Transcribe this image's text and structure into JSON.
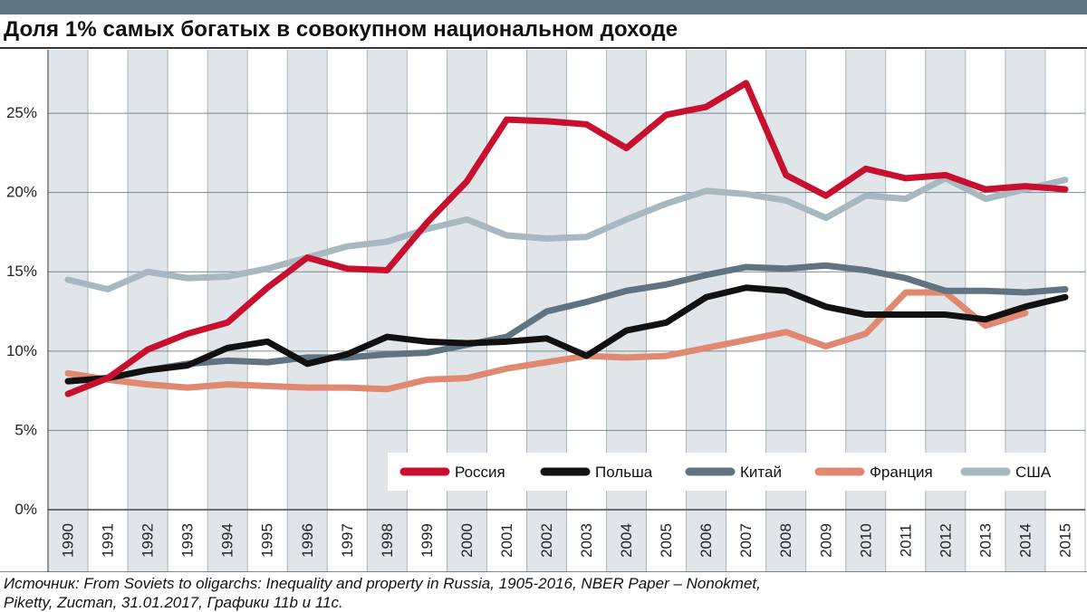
{
  "title": "Доля 1% самых богатых в совокупном национальном доходе",
  "source_line1": "Источник: From Soviets to oligarchs: Inequality and property in Russia, 1905-2016, NBER Paper – Nonokmet,",
  "source_line2": "Piketty, Zucman, 31.01.2017, Графики 11b и 11c.",
  "chart_data": {
    "type": "line",
    "title": "Доля 1% самых богатых в совокупном национальном доходе",
    "xlabel": "",
    "ylabel": "",
    "ylim": [
      0,
      29
    ],
    "yticks": [
      0,
      5,
      10,
      15,
      20,
      25
    ],
    "ytick_labels": [
      "0%",
      "5%",
      "10%",
      "15%",
      "20%",
      "25%"
    ],
    "categories": [
      "1990",
      "1991",
      "1992",
      "1993",
      "1994",
      "1995",
      "1996",
      "1997",
      "1998",
      "1999",
      "2000",
      "2001",
      "2002",
      "2003",
      "2004",
      "2005",
      "2006",
      "2007",
      "2008",
      "2009",
      "2010",
      "2011",
      "2012",
      "2013",
      "2014",
      "2015"
    ],
    "legend_position": "bottom-right",
    "series": [
      {
        "name": "Россия",
        "color": "#c8102e",
        "values": [
          7.3,
          8.3,
          10.1,
          11.1,
          11.8,
          14.0,
          15.9,
          15.2,
          15.1,
          18.1,
          20.7,
          24.6,
          24.5,
          24.3,
          22.8,
          24.9,
          25.4,
          26.9,
          21.1,
          19.8,
          21.5,
          20.9,
          21.1,
          20.2,
          20.4,
          20.2
        ]
      },
      {
        "name": "Польша",
        "color": "#111111",
        "values": [
          8.1,
          8.3,
          8.8,
          9.1,
          10.2,
          10.6,
          9.2,
          9.8,
          10.9,
          10.6,
          10.5,
          10.6,
          10.8,
          9.7,
          11.3,
          11.8,
          13.4,
          14.0,
          13.8,
          12.8,
          12.3,
          12.3,
          12.3,
          12.0,
          12.8,
          13.4
        ]
      },
      {
        "name": "Китай",
        "color": "#5f7480",
        "values": [
          8.1,
          8.3,
          8.8,
          9.2,
          9.4,
          9.3,
          9.6,
          9.6,
          9.8,
          9.9,
          10.4,
          10.9,
          12.5,
          13.1,
          13.8,
          14.2,
          14.8,
          15.3,
          15.2,
          15.4,
          15.1,
          14.6,
          13.8,
          13.8,
          13.7,
          13.9
        ]
      },
      {
        "name": "Франция",
        "color": "#e08870",
        "values": [
          8.6,
          8.2,
          7.9,
          7.7,
          7.9,
          7.8,
          7.7,
          7.7,
          7.6,
          8.2,
          8.3,
          8.9,
          9.3,
          9.7,
          9.6,
          9.7,
          10.2,
          10.7,
          11.2,
          10.3,
          11.1,
          13.7,
          13.7,
          11.6,
          12.4,
          null
        ]
      },
      {
        "name": "США",
        "color": "#a8b8c0",
        "values": [
          14.5,
          13.9,
          15.0,
          14.6,
          14.7,
          15.2,
          15.9,
          16.6,
          16.9,
          17.7,
          18.3,
          17.3,
          17.1,
          17.2,
          18.3,
          19.3,
          20.1,
          19.9,
          19.5,
          18.4,
          19.8,
          19.6,
          20.9,
          19.6,
          20.2,
          20.8
        ]
      }
    ]
  }
}
